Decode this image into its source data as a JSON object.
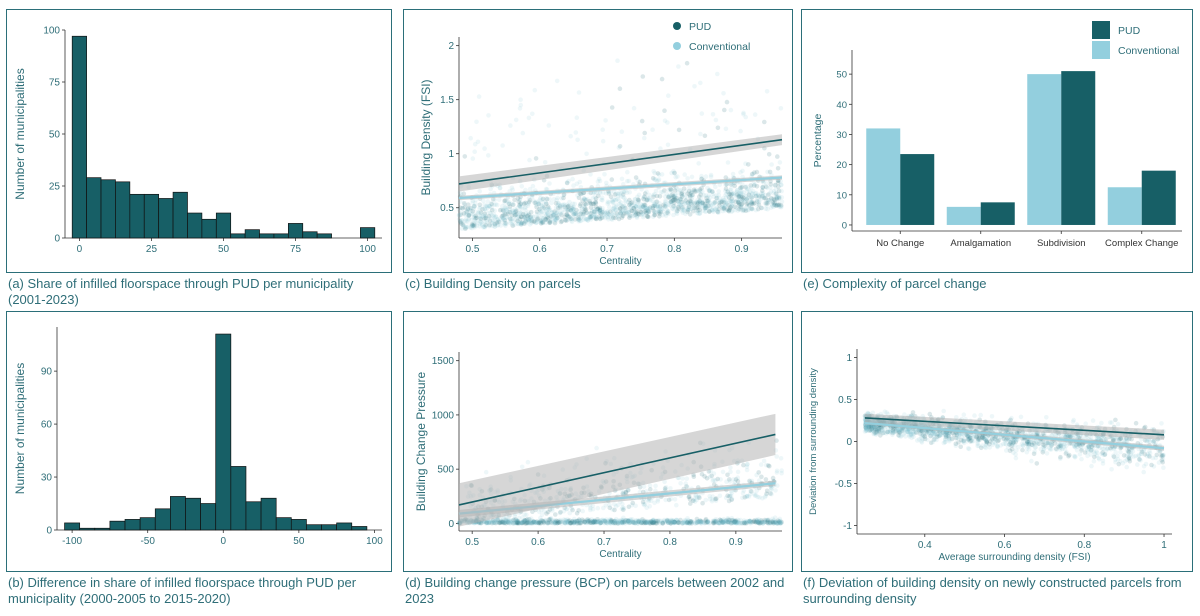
{
  "colors": {
    "frame": "#2b6f79",
    "pud": "#175f66",
    "conventional": "#93cfde",
    "axis_text": "#2f6e78",
    "ci_band": "#b5b5b5",
    "scatter_pud": "#1c6c78",
    "scatter_conv": "#7fc4d4"
  },
  "captions": {
    "a": "(a) Share of infilled floorspace through PUD per municipality (2001-2023)",
    "b": "(b) Difference in share of infilled floorspace through PUD per municipality (2000-2005 to 2015-2020)",
    "c": "(c) Building Density on parcels",
    "d": "(d) Building change pressure (BCP) on parcels between 2002 and 2023",
    "e": "(e) Complexity of parcel change",
    "f": "(f) Deviation of building density on newly constructed parcels from surrounding density"
  },
  "chart_data": [
    {
      "id": "a",
      "type": "bar",
      "title": "",
      "xlabel": "",
      "ylabel": "Number of municipalities",
      "xticks": [
        0,
        25,
        50,
        75,
        100
      ],
      "yticks": [
        0,
        25,
        50,
        75,
        100
      ],
      "xlim": [
        -5,
        105
      ],
      "ylim": [
        0,
        100
      ],
      "bin_width": 5,
      "bin_centers": [
        0,
        5,
        10,
        15,
        20,
        25,
        30,
        35,
        40,
        45,
        50,
        55,
        60,
        65,
        70,
        75,
        80,
        85,
        90,
        95,
        100
      ],
      "values": [
        97,
        29,
        28,
        27,
        21,
        21,
        19,
        22,
        12,
        9,
        12,
        2,
        4,
        2,
        2,
        7,
        3,
        2,
        0,
        0,
        5
      ]
    },
    {
      "id": "b",
      "type": "bar",
      "title": "",
      "xlabel": "",
      "ylabel": "Number of municipalities",
      "xticks": [
        -100,
        -50,
        0,
        50,
        100
      ],
      "yticks": [
        0,
        30,
        60,
        90
      ],
      "xlim": [
        -110,
        105
      ],
      "ylim": [
        0,
        115
      ],
      "bin_width": 10,
      "bin_centers": [
        -100,
        -90,
        -80,
        -70,
        -60,
        -50,
        -40,
        -30,
        -20,
        -10,
        0,
        10,
        20,
        30,
        40,
        50,
        60,
        70,
        80,
        90
      ],
      "values": [
        4,
        1,
        1,
        5,
        6,
        7,
        12,
        19,
        18,
        15,
        111,
        36,
        16,
        18,
        7,
        6,
        3,
        3,
        4,
        2
      ]
    },
    {
      "id": "c",
      "type": "scatter",
      "title": "",
      "xlabel": "Centrality",
      "ylabel": "Building Density (FSI)",
      "xticks": [
        0.5,
        0.6,
        0.7,
        0.8,
        0.9
      ],
      "yticks": [
        0.5,
        1.0,
        1.5,
        2.0
      ],
      "xlim": [
        0.48,
        0.96
      ],
      "ylim": [
        0.22,
        2.08
      ],
      "legend": {
        "position": "top-right",
        "entries": [
          "PUD",
          "Conventional"
        ]
      },
      "fits": [
        {
          "name": "PUD",
          "x": [
            0.48,
            0.96
          ],
          "y": [
            0.72,
            1.13
          ],
          "ci_half": [
            0.07,
            0.05
          ]
        },
        {
          "name": "Conventional",
          "x": [
            0.48,
            0.96
          ],
          "y": [
            0.59,
            0.78
          ],
          "ci_half": [
            0.02,
            0.02
          ]
        }
      ]
    },
    {
      "id": "d",
      "type": "scatter",
      "title": "",
      "xlabel": "Centrality",
      "ylabel": "Building Change Pressure",
      "xticks": [
        0.5,
        0.6,
        0.7,
        0.8,
        0.9
      ],
      "yticks": [
        0,
        500,
        1000,
        1500
      ],
      "xlim": [
        0.48,
        0.97
      ],
      "ylim": [
        -70,
        1580
      ],
      "fits": [
        {
          "name": "PUD",
          "x": [
            0.48,
            0.96
          ],
          "y": [
            170,
            820
          ],
          "ci_half": [
            200,
            190
          ]
        },
        {
          "name": "Conventional",
          "x": [
            0.48,
            0.96
          ],
          "y": [
            90,
            370
          ],
          "ci_half": [
            35,
            25
          ]
        }
      ]
    },
    {
      "id": "e",
      "type": "bar",
      "title": "",
      "xlabel": "",
      "ylabel": "Percentage",
      "categories": [
        "No Change",
        "Amalgamation",
        "Subdivision",
        "Complex Change"
      ],
      "yticks": [
        0,
        10,
        20,
        30,
        40,
        50
      ],
      "ylim": [
        -2,
        58
      ],
      "legend": {
        "position": "top-right",
        "entries": [
          "PUD",
          "Conventional"
        ]
      },
      "series": [
        {
          "name": "Conventional",
          "values": [
            32,
            6,
            50,
            12.5
          ]
        },
        {
          "name": "PUD",
          "values": [
            23.5,
            7.5,
            51,
            18
          ]
        }
      ]
    },
    {
      "id": "f",
      "type": "scatter",
      "title": "",
      "xlabel": "Average surrounding density (FSI)",
      "ylabel": "Deviation from surrounding density",
      "xticks": [
        0.4,
        0.6,
        0.8,
        1.0
      ],
      "yticks": [
        -1.0,
        -0.5,
        0.0,
        0.5,
        1.0
      ],
      "xlim": [
        0.23,
        1.02
      ],
      "ylim": [
        -1.1,
        1.1
      ],
      "fits": [
        {
          "name": "PUD",
          "x": [
            0.25,
            1.0
          ],
          "y": [
            0.28,
            0.08
          ],
          "ci_half": [
            0.05,
            0.06
          ]
        },
        {
          "name": "Conventional",
          "x": [
            0.25,
            1.0
          ],
          "y": [
            0.22,
            -0.08
          ],
          "ci_half": [
            0.02,
            0.03
          ]
        }
      ]
    }
  ]
}
